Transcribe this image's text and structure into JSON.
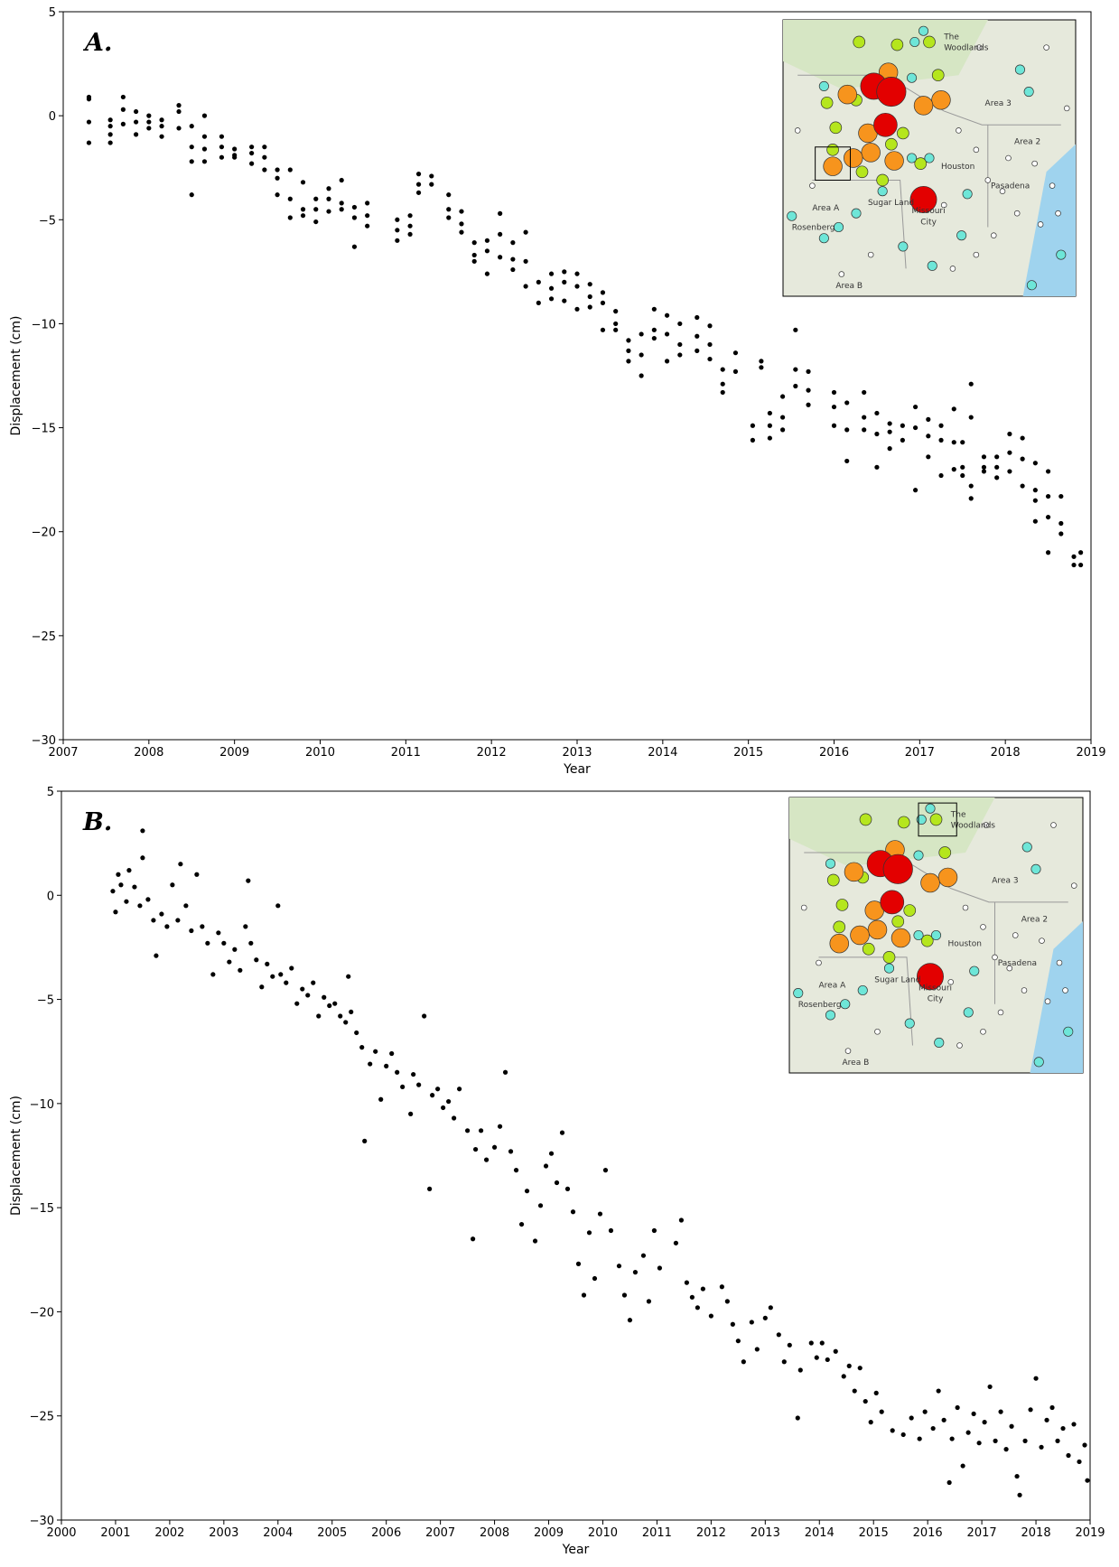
{
  "chart_data": [
    {
      "type": "scatter",
      "title": "A.",
      "xlabel": "Year",
      "ylabel": "Displacement (cm)",
      "color": "#000000",
      "xlim": [
        2007,
        2019
      ],
      "xticks": [
        2007,
        2008,
        2009,
        2010,
        2011,
        2012,
        2013,
        2014,
        2015,
        2016,
        2017,
        2018,
        2019
      ],
      "ylim": [
        -30,
        5
      ],
      "yticks": [
        {
          "value": -30,
          "label": "−30"
        },
        {
          "value": -25,
          "label": "−25"
        },
        {
          "value": -20,
          "label": "−20"
        },
        {
          "value": -15,
          "label": "−15"
        },
        {
          "value": -10,
          "label": "−10"
        },
        {
          "value": -5,
          "label": "−5"
        },
        0,
        5
      ],
      "inset_labels": [
        "The",
        "Woodlands",
        "Area 3",
        "Area 2",
        "Houston",
        "Sugar Land",
        "Missouri",
        "City",
        "Area A",
        "Area B",
        "Rosenberg",
        "Pasadena"
      ],
      "x": [
        2007.3,
        2007.3,
        2007.3,
        2007.3,
        2007.55,
        2007.55,
        2007.55,
        2007.55,
        2007.7,
        2007.7,
        2007.7,
        2007.85,
        2007.85,
        2007.85,
        2008.0,
        2008.0,
        2008.0,
        2008.15,
        2008.15,
        2008.15,
        2008.35,
        2008.35,
        2008.35,
        2008.5,
        2008.5,
        2008.5,
        2008.5,
        2008.65,
        2008.65,
        2008.65,
        2008.65,
        2008.85,
        2008.85,
        2008.85,
        2009.0,
        2009.0,
        2009.0,
        2009.2,
        2009.2,
        2009.2,
        2009.35,
        2009.35,
        2009.35,
        2009.5,
        2009.5,
        2009.5,
        2009.65,
        2009.65,
        2009.65,
        2009.8,
        2009.8,
        2009.8,
        2009.95,
        2009.95,
        2009.95,
        2010.1,
        2010.1,
        2010.1,
        2010.25,
        2010.25,
        2010.25,
        2010.4,
        2010.4,
        2010.4,
        2010.55,
        2010.55,
        2010.55,
        2010.9,
        2010.9,
        2010.9,
        2011.05,
        2011.05,
        2011.05,
        2011.15,
        2011.15,
        2011.15,
        2011.3,
        2011.3,
        2011.5,
        2011.5,
        2011.5,
        2011.65,
        2011.65,
        2011.65,
        2011.8,
        2011.8,
        2011.8,
        2011.95,
        2011.95,
        2011.95,
        2012.1,
        2012.1,
        2012.1,
        2012.25,
        2012.25,
        2012.25,
        2012.4,
        2012.4,
        2012.4,
        2012.55,
        2012.55,
        2012.7,
        2012.7,
        2012.7,
        2012.85,
        2012.85,
        2012.85,
        2013.0,
        2013.0,
        2013.0,
        2013.15,
        2013.15,
        2013.15,
        2013.3,
        2013.3,
        2013.3,
        2013.45,
        2013.45,
        2013.45,
        2013.6,
        2013.6,
        2013.6,
        2013.75,
        2013.75,
        2013.75,
        2013.9,
        2013.9,
        2013.9,
        2014.05,
        2014.05,
        2014.05,
        2014.2,
        2014.2,
        2014.2,
        2014.4,
        2014.4,
        2014.4,
        2014.55,
        2014.55,
        2014.55,
        2014.7,
        2014.7,
        2014.7,
        2014.85,
        2014.85,
        2015.05,
        2015.05,
        2015.15,
        2015.15,
        2015.25,
        2015.25,
        2015.25,
        2015.4,
        2015.4,
        2015.4,
        2015.55,
        2015.55,
        2015.55,
        2015.7,
        2015.7,
        2015.7,
        2016.0,
        2016.0,
        2016.0,
        2016.15,
        2016.15,
        2016.15,
        2016.35,
        2016.35,
        2016.35,
        2016.5,
        2016.5,
        2016.5,
        2016.65,
        2016.65,
        2016.65,
        2016.8,
        2016.8,
        2016.95,
        2016.95,
        2016.95,
        2017.1,
        2017.1,
        2017.1,
        2017.25,
        2017.25,
        2017.25,
        2017.4,
        2017.4,
        2017.4,
        2017.5,
        2017.5,
        2017.5,
        2017.6,
        2017.6,
        2017.6,
        2017.6,
        2017.75,
        2017.75,
        2017.75,
        2017.9,
        2017.9,
        2017.9,
        2018.05,
        2018.05,
        2018.05,
        2018.2,
        2018.2,
        2018.2,
        2018.35,
        2018.35,
        2018.35,
        2018.35,
        2018.5,
        2018.5,
        2018.5,
        2018.5,
        2018.65,
        2018.65,
        2018.65,
        2018.8,
        2018.8,
        2018.88,
        2018.88
      ],
      "values": [
        0.9,
        0.8,
        -0.3,
        -1.3,
        -0.5,
        -0.9,
        -1.3,
        -0.2,
        0.9,
        0.3,
        -0.4,
        0.2,
        -0.3,
        -0.9,
        0,
        -0.3,
        -0.6,
        -0.2,
        -0.5,
        -1,
        0.5,
        0.2,
        -0.6,
        -0.5,
        -1.5,
        -2.2,
        -3.8,
        0,
        -1,
        -1.6,
        -2.2,
        -1,
        -1.5,
        -2,
        -1.6,
        -2,
        -1.9,
        -1.5,
        -1.8,
        -2.3,
        -1.5,
        -2,
        -2.6,
        -2.6,
        -3,
        -3.8,
        -2.6,
        -4,
        -4.9,
        -3.2,
        -4.5,
        -4.8,
        -4,
        -4.5,
        -5.1,
        -3.5,
        -4,
        -4.6,
        -3.1,
        -4.2,
        -4.5,
        -4.4,
        -4.9,
        -6.3,
        -4.2,
        -4.8,
        -5.3,
        -5,
        -5.5,
        -6,
        -4.8,
        -5.3,
        -5.7,
        -2.8,
        -3.3,
        -3.7,
        -2.9,
        -3.3,
        -3.8,
        -4.5,
        -4.9,
        -4.6,
        -5.2,
        -5.6,
        -6.1,
        -6.7,
        -7,
        -6,
        -6.5,
        -7.6,
        -4.7,
        -5.7,
        -6.8,
        -6.1,
        -6.9,
        -7.4,
        -5.6,
        -7,
        -8.2,
        -8,
        -9,
        -7.6,
        -8.3,
        -8.8,
        -7.5,
        -8,
        -8.9,
        -7.6,
        -8.2,
        -9.3,
        -8.1,
        -8.7,
        -9.2,
        -8.5,
        -9,
        -10.3,
        -9.4,
        -10,
        -10.3,
        -10.8,
        -11.3,
        -11.8,
        -10.5,
        -11.5,
        -12.5,
        -9.3,
        -10.3,
        -10.7,
        -9.6,
        -10.5,
        -11.8,
        -10,
        -11,
        -11.5,
        -9.7,
        -10.6,
        -11.3,
        -10.1,
        -11,
        -11.7,
        -12.2,
        -12.9,
        -13.3,
        -11.4,
        -12.3,
        -14.9,
        -15.6,
        -11.8,
        -12.1,
        -14.3,
        -14.9,
        -15.5,
        -13.5,
        -14.5,
        -15.1,
        -10.3,
        -12.2,
        -13,
        -12.3,
        -13.2,
        -13.9,
        -13.3,
        -14,
        -14.9,
        -13.8,
        -15.1,
        -16.6,
        -13.3,
        -14.5,
        -15.1,
        -14.3,
        -15.3,
        -16.9,
        -14.8,
        -15.2,
        -16,
        -14.9,
        -15.6,
        -14,
        -15,
        -18,
        -14.6,
        -15.4,
        -16.4,
        -14.9,
        -15.6,
        -17.3,
        -14.1,
        -15.7,
        -17,
        -15.7,
        -16.9,
        -17.3,
        -12.9,
        -14.5,
        -17.8,
        -18.4,
        -16.4,
        -16.9,
        -17.1,
        -16.4,
        -16.9,
        -17.4,
        -15.3,
        -16.2,
        -17.1,
        -15.5,
        -16.5,
        -17.8,
        -16.7,
        -18,
        -18.5,
        -19.5,
        -17.1,
        -18.3,
        -19.3,
        -21,
        -18.3,
        -19.6,
        -20.1,
        -21.2,
        -21.6,
        -21,
        -21.6
      ]
    },
    {
      "type": "scatter",
      "title": "B.",
      "xlabel": "Year",
      "ylabel": "Displacement (cm)",
      "color": "#000000",
      "xlim": [
        2000,
        2019
      ],
      "xticks": [
        2000,
        2001,
        2002,
        2003,
        2004,
        2005,
        2006,
        2007,
        2008,
        2009,
        2010,
        2011,
        2012,
        2013,
        2014,
        2015,
        2016,
        2017,
        2018,
        2019
      ],
      "ylim": [
        -30,
        5
      ],
      "yticks": [
        {
          "value": -30,
          "label": "−30"
        },
        {
          "value": -25,
          "label": "−25"
        },
        {
          "value": -20,
          "label": "−20"
        },
        {
          "value": -15,
          "label": "−15"
        },
        {
          "value": -10,
          "label": "−10"
        },
        {
          "value": -5,
          "label": "−5"
        },
        0,
        5
      ],
      "inset_labels": [
        "The",
        "Woodlands",
        "Area 3",
        "Area 2",
        "Houston",
        "Sugar Land",
        "Missouri",
        "City",
        "Area A",
        "Area B",
        "Rosenberg",
        "Pasadena"
      ],
      "x": [
        2000.95,
        2001.0,
        2001.05,
        2001.1,
        2001.2,
        2001.25,
        2001.35,
        2001.45,
        2001.5,
        2001.5,
        2001.6,
        2001.7,
        2001.75,
        2001.85,
        2001.95,
        2002.05,
        2002.15,
        2002.2,
        2002.3,
        2002.4,
        2002.5,
        2002.6,
        2002.7,
        2002.8,
        2002.9,
        2003.0,
        2003.1,
        2003.2,
        2003.3,
        2003.4,
        2003.45,
        2003.5,
        2003.6,
        2003.7,
        2003.8,
        2003.9,
        2004.0,
        2004.05,
        2004.15,
        2004.25,
        2004.35,
        2004.45,
        2004.55,
        2004.65,
        2004.75,
        2004.85,
        2004.95,
        2005.05,
        2005.15,
        2005.25,
        2005.3,
        2005.35,
        2005.45,
        2005.55,
        2005.6,
        2005.7,
        2005.8,
        2005.9,
        2006.0,
        2006.1,
        2006.2,
        2006.3,
        2006.45,
        2006.5,
        2006.6,
        2006.7,
        2006.8,
        2006.85,
        2006.95,
        2007.05,
        2007.15,
        2007.25,
        2007.35,
        2007.5,
        2007.6,
        2007.65,
        2007.75,
        2007.85,
        2008.0,
        2008.1,
        2008.2,
        2008.3,
        2008.4,
        2008.5,
        2008.6,
        2008.75,
        2008.85,
        2008.95,
        2009.05,
        2009.15,
        2009.25,
        2009.35,
        2009.45,
        2009.55,
        2009.65,
        2009.75,
        2009.85,
        2009.95,
        2010.05,
        2010.15,
        2010.3,
        2010.4,
        2010.5,
        2010.6,
        2010.75,
        2010.85,
        2010.95,
        2011.05,
        2011.35,
        2011.45,
        2011.55,
        2011.65,
        2011.75,
        2011.85,
        2012.0,
        2012.2,
        2012.3,
        2012.4,
        2012.5,
        2012.6,
        2012.75,
        2012.85,
        2013.0,
        2013.1,
        2013.25,
        2013.35,
        2013.45,
        2013.6,
        2013.65,
        2013.85,
        2013.95,
        2014.05,
        2014.15,
        2014.3,
        2014.45,
        2014.55,
        2014.65,
        2014.75,
        2014.85,
        2014.95,
        2015.05,
        2015.15,
        2015.35,
        2015.55,
        2015.7,
        2015.85,
        2015.95,
        2016.1,
        2016.2,
        2016.3,
        2016.4,
        2016.45,
        2016.55,
        2016.65,
        2016.75,
        2016.85,
        2016.95,
        2017.05,
        2017.15,
        2017.25,
        2017.35,
        2017.45,
        2017.55,
        2017.65,
        2017.7,
        2017.8,
        2017.9,
        2018.0,
        2018.1,
        2018.2,
        2018.3,
        2018.4,
        2018.5,
        2018.6,
        2018.7,
        2018.8,
        2018.9,
        2018.95
      ],
      "values": [
        0.2,
        -0.8,
        1,
        0.5,
        -0.3,
        1.2,
        0.4,
        -0.5,
        3.1,
        1.8,
        -0.2,
        -1.2,
        -2.9,
        -0.9,
        -1.5,
        0.5,
        -1.2,
        1.5,
        -0.5,
        -1.7,
        1,
        -1.5,
        -2.3,
        -3.8,
        -1.8,
        -2.3,
        -3.2,
        -2.6,
        -3.6,
        -1.5,
        0.7,
        -2.3,
        -3.1,
        -4.4,
        -3.3,
        -3.9,
        -0.5,
        -3.8,
        -4.2,
        -3.5,
        -5.2,
        -4.5,
        -4.8,
        -4.2,
        -5.8,
        -4.9,
        -5.3,
        -5.2,
        -5.8,
        -6.1,
        -3.9,
        -5.6,
        -6.6,
        -7.3,
        -11.8,
        -8.1,
        -7.5,
        -9.8,
        -8.2,
        -7.6,
        -8.5,
        -9.2,
        -10.5,
        -8.6,
        -9.1,
        -5.8,
        -14.1,
        -9.6,
        -9.3,
        -10.2,
        -9.9,
        -10.7,
        -9.3,
        -11.3,
        -16.5,
        -12.2,
        -11.3,
        -12.7,
        -12.1,
        -11.1,
        -8.5,
        -12.3,
        -13.2,
        -15.8,
        -14.2,
        -16.6,
        -14.9,
        -13,
        -12.4,
        -13.8,
        -11.4,
        -14.1,
        -15.2,
        -17.7,
        -19.2,
        -16.2,
        -18.4,
        -15.3,
        -13.2,
        -16.1,
        -17.8,
        -19.2,
        -20.4,
        -18.1,
        -17.3,
        -19.5,
        -16.1,
        -17.9,
        -16.7,
        -15.6,
        -18.6,
        -19.3,
        -19.8,
        -18.9,
        -20.2,
        -18.8,
        -19.5,
        -20.6,
        -21.4,
        -22.4,
        -20.5,
        -21.8,
        -20.3,
        -19.8,
        -21.1,
        -22.4,
        -21.6,
        -25.1,
        -22.8,
        -21.5,
        -22.2,
        -21.5,
        -22.3,
        -21.9,
        -23.1,
        -22.6,
        -23.8,
        -22.7,
        -24.3,
        -25.3,
        -23.9,
        -24.8,
        -25.7,
        -25.9,
        -25.1,
        -26.1,
        -24.8,
        -25.6,
        -23.8,
        -25.2,
        -28.2,
        -26.1,
        -24.6,
        -27.4,
        -25.8,
        -24.9,
        -26.3,
        -25.3,
        -23.6,
        -26.2,
        -24.8,
        -26.6,
        -25.5,
        -27.9,
        -28.8,
        -26.2,
        -24.7,
        -23.2,
        -26.5,
        -25.2,
        -24.6,
        -26.2,
        -25.6,
        -26.9,
        -25.4,
        -27.2,
        -26.4,
        -28.1
      ]
    }
  ]
}
